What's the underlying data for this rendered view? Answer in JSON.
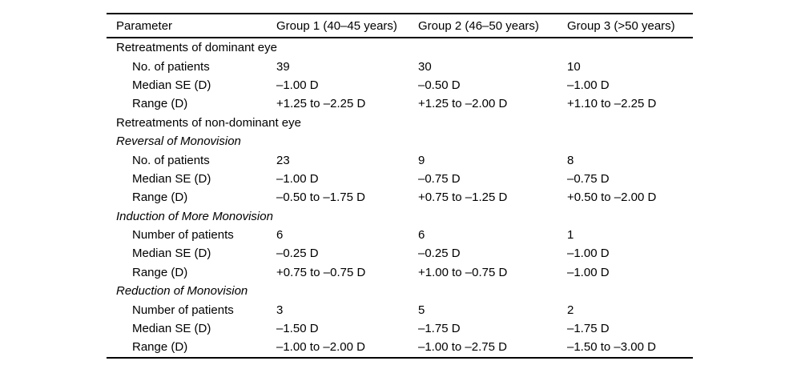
{
  "table": {
    "columns": [
      "Parameter",
      "Group 1 (40–45 years)",
      "Group 2 (46–50 years)",
      "Group 3 (>50 years)"
    ],
    "rows": [
      {
        "type": "section",
        "label": "Retreatments of dominant eye",
        "values": [
          "",
          "",
          ""
        ]
      },
      {
        "type": "data",
        "label": "No. of patients",
        "values": [
          "39",
          "30",
          "10"
        ]
      },
      {
        "type": "data",
        "label": "Median SE (D)",
        "values": [
          "–1.00 D",
          "–0.50 D",
          "–1.00 D"
        ]
      },
      {
        "type": "data",
        "label": "Range (D)",
        "values": [
          "+1.25 to –2.25 D",
          "+1.25 to –2.00 D",
          "+1.10 to –2.25 D"
        ]
      },
      {
        "type": "section",
        "label": "Retreatments of non-dominant eye",
        "values": [
          "",
          "",
          ""
        ]
      },
      {
        "type": "subsection",
        "label": "Reversal of Monovision",
        "values": [
          "",
          "",
          ""
        ]
      },
      {
        "type": "data",
        "label": "No. of patients",
        "values": [
          "23",
          "9",
          "8"
        ]
      },
      {
        "type": "data",
        "label": "Median SE (D)",
        "values": [
          "–1.00 D",
          "–0.75 D",
          "–0.75 D"
        ]
      },
      {
        "type": "data",
        "label": "Range (D)",
        "values": [
          "–0.50 to –1.75 D",
          "+0.75 to –1.25 D",
          "+0.50 to –2.00 D"
        ]
      },
      {
        "type": "subsection",
        "label": "Induction of More Monovision",
        "values": [
          "",
          "",
          ""
        ]
      },
      {
        "type": "data",
        "label": "Number of patients",
        "values": [
          "6",
          "6",
          "1"
        ]
      },
      {
        "type": "data",
        "label": "Median SE (D)",
        "values": [
          "–0.25 D",
          "–0.25 D",
          "–1.00 D"
        ]
      },
      {
        "type": "data",
        "label": "Range (D)",
        "values": [
          "+0.75 to –0.75 D",
          "+1.00 to –0.75 D",
          "–1.00 D"
        ]
      },
      {
        "type": "subsection",
        "label": "Reduction of Monovision",
        "values": [
          "",
          "",
          ""
        ]
      },
      {
        "type": "data",
        "label": "Number of patients",
        "values": [
          "3",
          "5",
          "2"
        ]
      },
      {
        "type": "data",
        "label": "Median SE (D)",
        "values": [
          "–1.50 D",
          "–1.75 D",
          "–1.75 D"
        ]
      },
      {
        "type": "data",
        "label": "Range (D)",
        "values": [
          "–1.00 to –2.00 D",
          "–1.00 to –2.75 D",
          "–1.50 to –3.00 D"
        ]
      }
    ]
  }
}
